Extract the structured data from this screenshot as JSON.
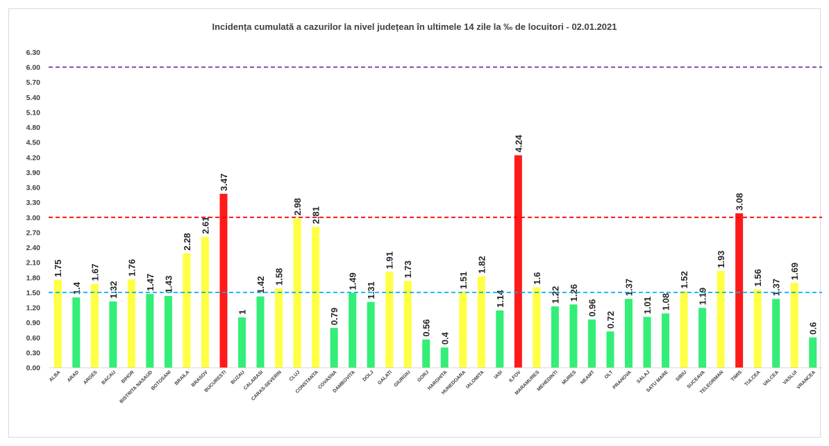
{
  "chart_data": {
    "type": "bar",
    "title": "Incidența cumulată a cazurilor la nivel județean în ultimele 14 zile la ‰ de locuitori - 02.01.2021",
    "xlabel": "",
    "ylabel": "",
    "ylim": [
      0,
      6.3
    ],
    "yticks": [
      "0.00",
      "0.30",
      "0.60",
      "0.90",
      "1.20",
      "1.50",
      "1.80",
      "2.10",
      "2.40",
      "2.70",
      "3.00",
      "3.30",
      "3.60",
      "3.90",
      "4.20",
      "4.50",
      "4.80",
      "5.10",
      "5.40",
      "5.70",
      "6.00",
      "6.30"
    ],
    "categories": [
      "ALBA",
      "ARAD",
      "ARGES",
      "BACAU",
      "BIHOR",
      "BISTRITA NASAUD",
      "BOTOSANI",
      "BRAILA",
      "BRASOV",
      "BUCURESTI",
      "BUZAU",
      "CALARASI",
      "CARAS-SEVERIN",
      "CLUJ",
      "CONSTANTA",
      "COVASNA",
      "DAMBOVITA",
      "DOLJ",
      "GALATI",
      "GIURGIU",
      "GORJ",
      "HARGHITA",
      "HUNEDOARA",
      "IALOMITA",
      "IASI",
      "ILFOV",
      "MARAMURES",
      "MEHEDINTI",
      "MURES",
      "NEAMT",
      "OLT",
      "PRAHOVA",
      "SALAJ",
      "SATU MARE",
      "SIBIU",
      "SUCEAVA",
      "TELEORMAN",
      "TIMIS",
      "TULCEA",
      "VALCEA",
      "VASLUI",
      "VRANCEA"
    ],
    "values": [
      1.75,
      1.4,
      1.67,
      1.32,
      1.76,
      1.47,
      1.43,
      2.28,
      2.61,
      3.47,
      1,
      1.42,
      1.58,
      2.98,
      2.81,
      0.79,
      1.49,
      1.31,
      1.91,
      1.73,
      0.56,
      0.4,
      1.51,
      1.82,
      1.14,
      4.24,
      1.6,
      1.22,
      1.26,
      0.96,
      0.72,
      1.37,
      1.01,
      1.08,
      1.52,
      1.19,
      1.93,
      3.08,
      1.56,
      1.37,
      1.69,
      0.6
    ],
    "value_labels": [
      "1.75",
      "1.4",
      "1.67",
      "1.32",
      "1.76",
      "1.47",
      "1.43",
      "2.28",
      "2.61",
      "3.47",
      "1",
      "1.42",
      "1.58",
      "2.98",
      "2.81",
      "0.79",
      "1.49",
      "1.31",
      "1.91",
      "1.73",
      "0.56",
      "0.4",
      "1.51",
      "1.82",
      "1.14",
      "4.24",
      "1.6",
      "1.22",
      "1.26",
      "0.96",
      "0.72",
      "1.37",
      "1.01",
      "1.08",
      "1.52",
      "1.19",
      "1.93",
      "3.08",
      "1.56",
      "1.37",
      "1.69",
      "0.6"
    ],
    "thresholds": [
      {
        "value": 1.5,
        "color": "#00b0f0"
      },
      {
        "value": 3.0,
        "color": "#ff0000"
      },
      {
        "value": 6.0,
        "color": "#7030a0"
      }
    ],
    "colors": {
      "green": "#33ee77",
      "yellow": "#ffff44",
      "red": "#ff1a1a"
    },
    "bar_color_rule": "green below 1.5, yellow 1.5–3.0, red above 3.0",
    "grid": false,
    "legend": "none"
  }
}
